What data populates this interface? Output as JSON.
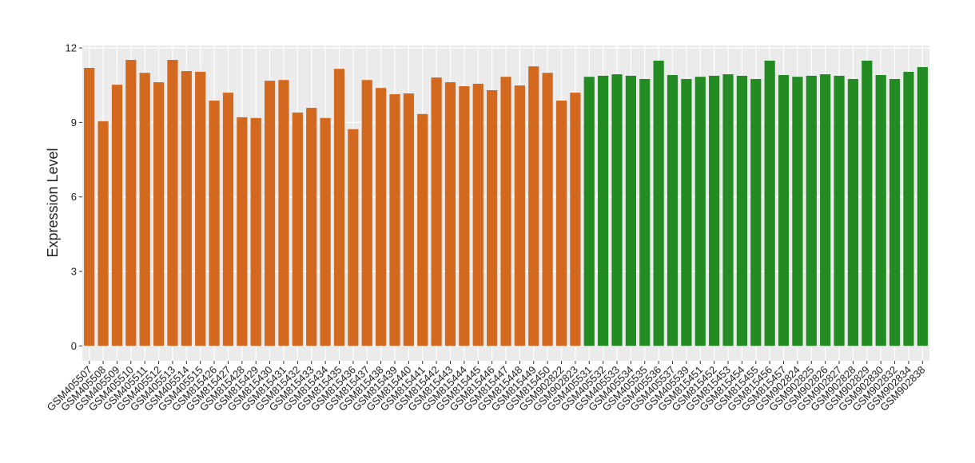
{
  "chart_data": {
    "type": "bar",
    "y_label": "Expression Level",
    "categories": [
      "GSM405507",
      "GSM405508",
      "GSM405509",
      "GSM405510",
      "GSM405511",
      "GSM405512",
      "GSM405513",
      "GSM405514",
      "GSM405515",
      "GSM815426",
      "GSM815427",
      "GSM815428",
      "GSM815429",
      "GSM815430",
      "GSM815431",
      "GSM815432",
      "GSM815433",
      "GSM815434",
      "GSM815435",
      "GSM815436",
      "GSM815437",
      "GSM815438",
      "GSM815439",
      "GSM815440",
      "GSM815441",
      "GSM815442",
      "GSM815443",
      "GSM815444",
      "GSM815445",
      "GSM815446",
      "GSM815447",
      "GSM815448",
      "GSM815449",
      "GSM815450",
      "GSM902822",
      "GSM902823",
      "GSM405531",
      "GSM405532",
      "GSM405533",
      "GSM405534",
      "GSM405535",
      "GSM405536",
      "GSM405537",
      "GSM405539",
      "GSM815451",
      "GSM815452",
      "GSM815453",
      "GSM815454",
      "GSM815455",
      "GSM815456",
      "GSM815457",
      "GSM902824",
      "GSM902825",
      "GSM902826",
      "GSM902827",
      "GSM902828",
      "GSM902829",
      "GSM902830",
      "GSM902832",
      "GSM902834",
      "GSM902838"
    ],
    "series": [
      {
        "color": "#D2691E",
        "values": [
          11.2,
          9.05,
          10.52,
          11.52,
          11.0,
          10.62,
          11.52,
          11.07,
          11.04,
          9.88,
          10.2,
          9.21,
          9.18,
          10.68,
          10.71,
          9.4,
          9.59,
          9.18,
          11.16,
          8.73,
          10.71,
          10.39,
          10.14,
          10.17,
          9.34,
          10.81,
          10.62,
          10.46,
          10.56,
          10.3,
          10.84,
          10.49,
          11.26,
          11.0,
          9.88,
          10.2,
          null,
          null,
          null,
          null,
          null,
          null,
          null,
          null,
          null,
          null,
          null,
          null,
          null,
          null,
          null,
          null,
          null,
          null,
          null,
          null,
          null,
          null,
          null,
          null,
          null
        ]
      },
      {
        "color": "#228B22",
        "values": [
          null,
          null,
          null,
          null,
          null,
          null,
          null,
          null,
          null,
          null,
          null,
          null,
          null,
          null,
          null,
          null,
          null,
          null,
          null,
          null,
          null,
          null,
          null,
          null,
          null,
          null,
          null,
          null,
          null,
          null,
          null,
          null,
          null,
          null,
          null,
          null,
          10.84,
          10.88,
          10.94,
          10.88,
          10.75,
          11.49,
          10.91,
          10.75,
          10.84,
          10.88,
          10.94,
          10.88,
          10.75,
          11.49,
          10.91,
          10.84,
          10.88,
          10.94,
          10.88,
          10.75,
          11.49,
          10.91,
          10.75,
          11.04,
          11.23
        ]
      }
    ],
    "ylim": [
      -0.6,
      12.1
    ],
    "yticks": [
      0,
      3,
      6,
      9,
      12
    ],
    "grid": true
  }
}
